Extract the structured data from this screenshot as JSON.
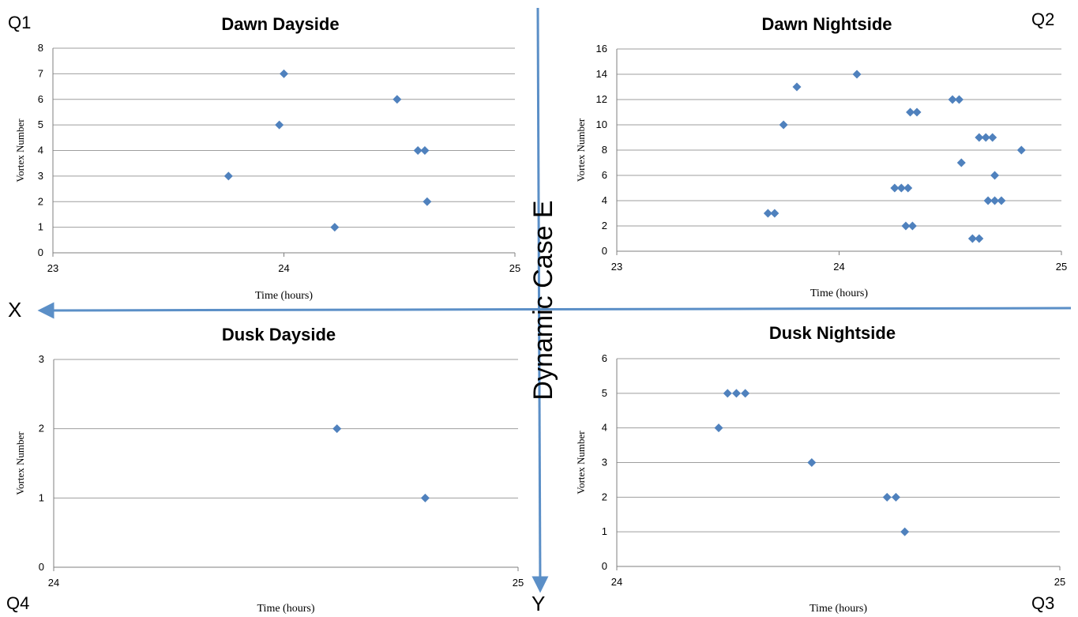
{
  "center_label": "Dynamic Case E",
  "axis_labels": {
    "x": "X",
    "y": "Y"
  },
  "quadrant_labels": {
    "q1": "Q1",
    "q2": "Q2",
    "q3": "Q3",
    "q4": "Q4"
  },
  "colors": {
    "marker": "#4f81bd",
    "arrow": "#5b8fc7",
    "grid": "#9e9e9e"
  },
  "chart_data": [
    {
      "id": "dawn-dayside",
      "type": "scatter",
      "title": "Dawn Dayside",
      "xlabel": "Time (hours)",
      "ylabel": "Vortex Number",
      "xlim": [
        23,
        25
      ],
      "ylim": [
        0,
        8
      ],
      "xticks": [
        23,
        24,
        25
      ],
      "yticks": [
        0,
        1,
        2,
        3,
        4,
        5,
        6,
        7,
        8
      ],
      "points": [
        [
          24.22,
          1
        ],
        [
          24.62,
          2
        ],
        [
          23.76,
          3
        ],
        [
          24.58,
          4
        ],
        [
          24.61,
          4
        ],
        [
          23.98,
          5
        ],
        [
          24.49,
          6
        ],
        [
          24.0,
          7
        ]
      ]
    },
    {
      "id": "dawn-nightside",
      "type": "scatter",
      "title": "Dawn Nightside",
      "xlabel": "Time (hours)",
      "ylabel": "Vortex Number",
      "xlim": [
        23,
        25
      ],
      "ylim": [
        0,
        16
      ],
      "xticks": [
        23,
        24,
        25
      ],
      "yticks": [
        0,
        2,
        4,
        6,
        8,
        10,
        12,
        14,
        16
      ],
      "points": [
        [
          24.6,
          1
        ],
        [
          24.63,
          1
        ],
        [
          24.3,
          2
        ],
        [
          24.33,
          2
        ],
        [
          23.68,
          3
        ],
        [
          23.71,
          3
        ],
        [
          24.25,
          5
        ],
        [
          24.28,
          5
        ],
        [
          24.31,
          5
        ],
        [
          24.67,
          4
        ],
        [
          24.7,
          4
        ],
        [
          24.73,
          4
        ],
        [
          24.7,
          6
        ],
        [
          24.55,
          7
        ],
        [
          24.82,
          8
        ],
        [
          24.63,
          9
        ],
        [
          24.66,
          9
        ],
        [
          24.69,
          9
        ],
        [
          23.75,
          10
        ],
        [
          24.32,
          11
        ],
        [
          24.35,
          11
        ],
        [
          24.51,
          12
        ],
        [
          24.54,
          12
        ],
        [
          23.81,
          13
        ],
        [
          24.08,
          14
        ]
      ]
    },
    {
      "id": "dusk-dayside",
      "type": "scatter",
      "title": "Dusk Dayside",
      "xlabel": "Time (hours)",
      "ylabel": "Vortex Number",
      "xlim": [
        24,
        25
      ],
      "ylim": [
        0,
        3
      ],
      "xticks": [
        24,
        25
      ],
      "yticks": [
        0,
        1,
        2,
        3
      ],
      "points": [
        [
          24.61,
          2
        ],
        [
          24.8,
          1
        ]
      ]
    },
    {
      "id": "dusk-nightside",
      "type": "scatter",
      "title": "Dusk Nightside",
      "xlabel": "Time (hours)",
      "ylabel": "Vortex Number",
      "xlim": [
        24,
        25
      ],
      "ylim": [
        0,
        6
      ],
      "xticks": [
        24,
        25
      ],
      "yticks": [
        0,
        1,
        2,
        3,
        4,
        5,
        6
      ],
      "points": [
        [
          24.65,
          1
        ],
        [
          24.61,
          2
        ],
        [
          24.63,
          2
        ],
        [
          24.44,
          3
        ],
        [
          24.23,
          4
        ],
        [
          24.25,
          5
        ],
        [
          24.27,
          5
        ],
        [
          24.29,
          5
        ]
      ]
    }
  ]
}
